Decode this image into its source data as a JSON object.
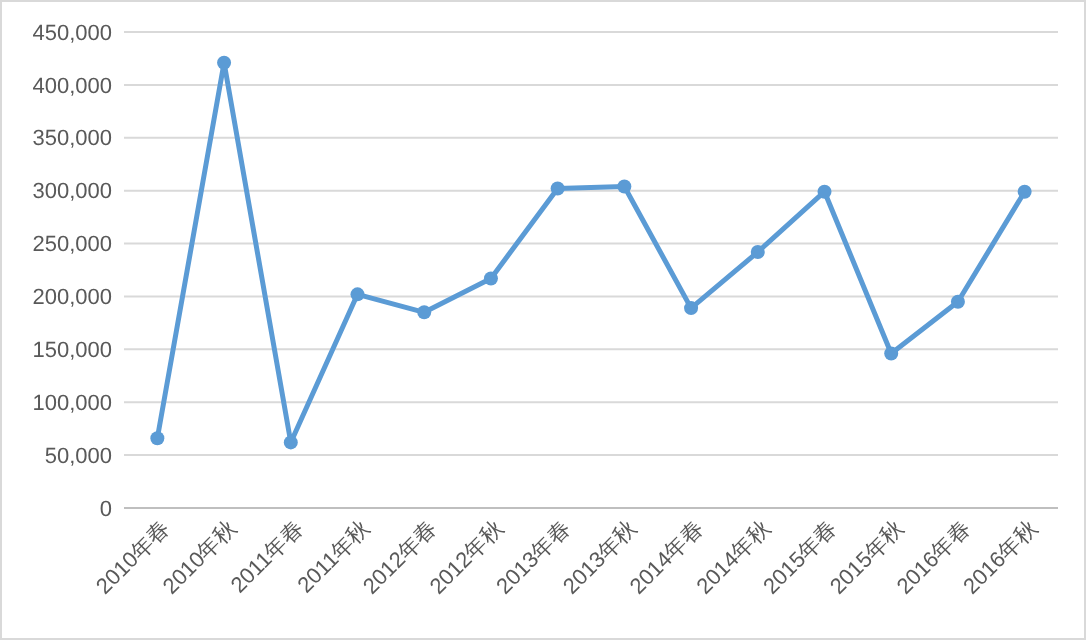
{
  "chart_data": {
    "type": "line",
    "categories": [
      "2010年春",
      "2010年秋",
      "2011年春",
      "2011年秋",
      "2012年春",
      "2012年秋",
      "2013年春",
      "2013年秋",
      "2014年春",
      "2014年秋",
      "2015年春",
      "2015年秋",
      "2016年春",
      "2016年秋"
    ],
    "series": [
      {
        "color": "#5b9bd5",
        "values": [
          66000,
          421000,
          62000,
          202000,
          185000,
          217000,
          302000,
          304000,
          189000,
          242000,
          299000,
          146000,
          195000,
          299000
        ]
      }
    ],
    "ylim": [
      0,
      450000
    ],
    "yticks": [
      {
        "value": 0,
        "label": "0"
      },
      {
        "value": 50000,
        "label": "50,000"
      },
      {
        "value": 100000,
        "label": "100,000"
      },
      {
        "value": 150000,
        "label": "150,000"
      },
      {
        "value": 200000,
        "label": "200,000"
      },
      {
        "value": 250000,
        "label": "250,000"
      },
      {
        "value": 300000,
        "label": "300,000"
      },
      {
        "value": 350000,
        "label": "350,000"
      },
      {
        "value": 400000,
        "label": "400,000"
      },
      {
        "value": 450000,
        "label": "450,000"
      }
    ],
    "grid": "y",
    "marker": "circle",
    "line_style": "solid"
  }
}
